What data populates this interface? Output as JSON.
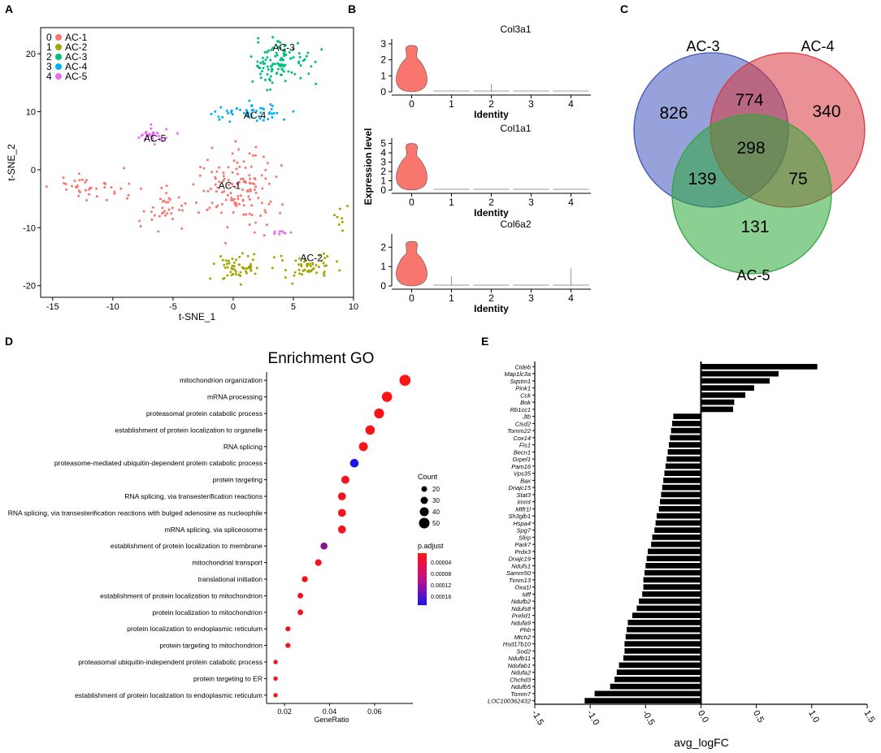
{
  "panel_labels": {
    "a": "A",
    "b": "B",
    "c": "C",
    "d": "D",
    "e": "E"
  },
  "chart_data": [
    {
      "id": "tsne",
      "type": "scatter",
      "xlabel": "t-SNE_1",
      "ylabel": "t-SNE_2",
      "xlim": [
        -16,
        10
      ],
      "ylim": [
        -22,
        24.5
      ],
      "x_ticks": [
        -15,
        -10,
        -5,
        0,
        5,
        10
      ],
      "y_ticks": [
        -20,
        -10,
        0,
        10,
        20
      ],
      "legend": [
        {
          "num": "0",
          "label": "AC-1",
          "color": "#f8766d"
        },
        {
          "num": "1",
          "label": "AC-2",
          "color": "#a3a500"
        },
        {
          "num": "2",
          "label": "AC-3",
          "color": "#00bf7d"
        },
        {
          "num": "3",
          "label": "AC-4",
          "color": "#00b0f6"
        },
        {
          "num": "4",
          "label": "AC-5",
          "color": "#e76bf3"
        }
      ],
      "cluster_labels": [
        {
          "text": "AC-3",
          "x": 4.2,
          "y": 20.5
        },
        {
          "text": "AC-4",
          "x": 1.8,
          "y": 8.8
        },
        {
          "text": "AC-5",
          "x": -6.5,
          "y": 4.8
        },
        {
          "text": "AC-1",
          "x": -0.3,
          "y": -3.3
        },
        {
          "text": "AC-2",
          "x": 6.5,
          "y": -15.8
        }
      ],
      "clusters": [
        {
          "name": "AC-1",
          "color": "#f8766d",
          "n": 130,
          "cx": 0.5,
          "cy": -3,
          "sx": 2.2,
          "sy": 4.5
        },
        {
          "name": "AC-1b",
          "color": "#f8766d",
          "n": 40,
          "cx": -12,
          "cy": -3,
          "sx": 2.2,
          "sy": 1.8
        },
        {
          "name": "AC-1c",
          "color": "#f8766d",
          "n": 35,
          "cx": -5.5,
          "cy": -7,
          "sx": 1.4,
          "sy": 2.4
        },
        {
          "name": "AC-2",
          "color": "#a3a500",
          "n": 55,
          "cx": 0.5,
          "cy": -17,
          "sx": 1.3,
          "sy": 1.6
        },
        {
          "name": "AC-2b",
          "color": "#a3a500",
          "n": 55,
          "cx": 6,
          "cy": -16.5,
          "sx": 1.8,
          "sy": 1.6
        },
        {
          "name": "AC-2c",
          "color": "#a3a500",
          "n": 8,
          "cx": 8.8,
          "cy": -8,
          "sx": 0.4,
          "sy": 1.5
        },
        {
          "name": "AC-3",
          "color": "#00bf7d",
          "n": 110,
          "cx": 4,
          "cy": 18.5,
          "sx": 1.7,
          "sy": 2.8
        },
        {
          "name": "AC-4",
          "color": "#00b0f6",
          "n": 50,
          "cx": 1.5,
          "cy": 10,
          "sx": 2.2,
          "sy": 1.2
        },
        {
          "name": "AC-5",
          "color": "#e76bf3",
          "n": 30,
          "cx": -6.5,
          "cy": 6,
          "sx": 1.0,
          "sy": 1.2
        },
        {
          "name": "AC-5b",
          "color": "#e76bf3",
          "n": 8,
          "cx": 4,
          "cy": -11,
          "sx": 0.5,
          "sy": 0.3
        }
      ]
    },
    {
      "id": "violin",
      "type": "violin",
      "ylabel": "Expression level",
      "xlabel": "Identity",
      "categories": [
        "0",
        "1",
        "2",
        "3",
        "4"
      ],
      "genes": [
        {
          "name": "Col3a1",
          "ylim": [
            0,
            3.2
          ],
          "y_ticks": [
            0,
            1,
            2,
            3
          ],
          "peak": 2.9
        },
        {
          "name": "Col1a1",
          "ylim": [
            0,
            5.4
          ],
          "y_ticks": [
            0,
            1,
            2,
            3,
            4,
            5
          ],
          "peak": 5.0
        },
        {
          "name": "Col6a2",
          "ylim": [
            0,
            2.6
          ],
          "y_ticks": [
            0,
            1,
            2
          ],
          "peak": 2.3
        }
      ]
    },
    {
      "id": "venn",
      "type": "venn",
      "sets": [
        {
          "label": "AC-3",
          "color": "#3f55b9"
        },
        {
          "label": "AC-4",
          "color": "#d9363e"
        },
        {
          "label": "AC-5",
          "color": "#2ea83a"
        }
      ],
      "regions": {
        "only_ac3": "826",
        "only_ac4": "340",
        "only_ac5": "131",
        "ac3_ac4": "774",
        "ac3_ac5": "139",
        "ac4_ac5": "75",
        "all": "298"
      }
    },
    {
      "id": "go_dotplot",
      "type": "scatter",
      "title": "Enrichment GO",
      "xlabel": "GeneRatio",
      "xlim": [
        0.012,
        0.077
      ],
      "x_ticks": [
        0.02,
        0.04,
        0.06
      ],
      "x_tick_labels": [
        "0.02",
        "0.04",
        "0.06"
      ],
      "count_legend": {
        "title": "Count",
        "values": [
          20,
          30,
          40,
          50
        ]
      },
      "color_legend": {
        "title": "p.adjust",
        "labels": [
          "0.00004",
          "0.00008",
          "0.00012",
          "0.00016"
        ]
      },
      "terms": [
        {
          "term": "mitochondrion organization",
          "ratio": 0.0735,
          "count": 53,
          "padj": 1e-06
        },
        {
          "term": "mRNA processing",
          "ratio": 0.0655,
          "count": 48,
          "padj": 2e-06
        },
        {
          "term": "proteasomal protein catabolic process",
          "ratio": 0.062,
          "count": 46,
          "padj": 3e-06
        },
        {
          "term": "establishment of protein localization to organelle",
          "ratio": 0.058,
          "count": 43,
          "padj": 4e-06
        },
        {
          "term": "RNA splicing",
          "ratio": 0.055,
          "count": 40,
          "padj": 5e-06
        },
        {
          "term": "proteasome-mediated ubiquitin-dependent protein catabolic process",
          "ratio": 0.051,
          "count": 38,
          "padj": 0.00018
        },
        {
          "term": "protein targeting",
          "ratio": 0.047,
          "count": 35,
          "padj": 8e-06
        },
        {
          "term": "RNA splicing, via transesterification reactions",
          "ratio": 0.0455,
          "count": 34,
          "padj": 9e-06
        },
        {
          "term": "RNA splicing, via transesterification reactions with bulged adenosine as nucleophile",
          "ratio": 0.0455,
          "count": 34,
          "padj": 9e-06
        },
        {
          "term": "mRNA splicing, via spliceosome",
          "ratio": 0.0455,
          "count": 34,
          "padj": 9e-06
        },
        {
          "term": "establishment of protein localization to membrane",
          "ratio": 0.0375,
          "count": 28,
          "padj": 0.0001
        },
        {
          "term": "mitochondrial transport",
          "ratio": 0.035,
          "count": 26,
          "padj": 1e-05
        },
        {
          "term": "translational initiation",
          "ratio": 0.029,
          "count": 22,
          "padj": 1e-05
        },
        {
          "term": "establishment of protein localization to mitochondrion",
          "ratio": 0.027,
          "count": 20,
          "padj": 1e-05
        },
        {
          "term": "protein localization to mitochondrion",
          "ratio": 0.027,
          "count": 20,
          "padj": 1e-05
        },
        {
          "term": "protein localization to endoplasmic reticulum",
          "ratio": 0.0215,
          "count": 16,
          "padj": 1e-05
        },
        {
          "term": "protein targeting to mitochondrion",
          "ratio": 0.0215,
          "count": 16,
          "padj": 1e-05
        },
        {
          "term": "proteasomal ubiquitin-independent protein catabolic process",
          "ratio": 0.016,
          "count": 12,
          "padj": 1e-05
        },
        {
          "term": "protein targeting to ER",
          "ratio": 0.016,
          "count": 12,
          "padj": 1e-05
        },
        {
          "term": "establishment of protein localization to endoplasmic reticulum",
          "ratio": 0.016,
          "count": 12,
          "padj": 1e-05
        }
      ]
    },
    {
      "id": "logfc_bar",
      "type": "bar",
      "orientation": "horizontal",
      "xlabel": "avg_logFC",
      "xlim": [
        -1.5,
        1.5
      ],
      "x_ticks": [
        -1.5,
        -1.0,
        -0.5,
        0.0,
        0.5,
        1.0,
        1.5
      ],
      "x_tick_labels": [
        "-1.5",
        "-1.0",
        "-0.5",
        "0.0",
        "0.5",
        "1.0",
        "1.5"
      ],
      "categories": [
        "Cideb",
        "Map1lc3a",
        "Sqstm1",
        "Pink1",
        "Cck",
        "Bok",
        "Rb1cc1",
        "Jtb",
        "Cisd2",
        "Tomm22",
        "Cox14",
        "Fis1",
        "Becn1",
        "Grpel1",
        "Pam16",
        "Vps35",
        "Bax",
        "Dnajc15",
        "Stat3",
        "Immt",
        "Mtfr1l",
        "Sh3glb1",
        "Hspa4",
        "Spg7",
        "Slirp",
        "Park7",
        "Prdx3",
        "Dnajc19",
        "Ndufs1",
        "Samm50",
        "Timm13",
        "Oxa1l",
        "Mff",
        "Ndufb2",
        "Ndufs8",
        "Prelid1",
        "Ndufa9",
        "Phb",
        "Mtch2",
        "Hsd17b10",
        "Sod2",
        "Ndufb11",
        "Ndufab1",
        "Ndufa2",
        "Chchd3",
        "Ndufb5",
        "Tomm7",
        "LOC100362432"
      ],
      "values": [
        1.05,
        0.7,
        0.62,
        0.48,
        0.4,
        0.3,
        0.29,
        -0.25,
        -0.26,
        -0.27,
        -0.28,
        -0.29,
        -0.3,
        -0.31,
        -0.32,
        -0.33,
        -0.34,
        -0.35,
        -0.36,
        -0.37,
        -0.38,
        -0.4,
        -0.41,
        -0.42,
        -0.44,
        -0.45,
        -0.48,
        -0.49,
        -0.5,
        -0.51,
        -0.52,
        -0.52,
        -0.53,
        -0.56,
        -0.58,
        -0.62,
        -0.66,
        -0.67,
        -0.68,
        -0.69,
        -0.69,
        -0.7,
        -0.74,
        -0.76,
        -0.78,
        -0.82,
        -0.96,
        -1.05
      ]
    }
  ]
}
